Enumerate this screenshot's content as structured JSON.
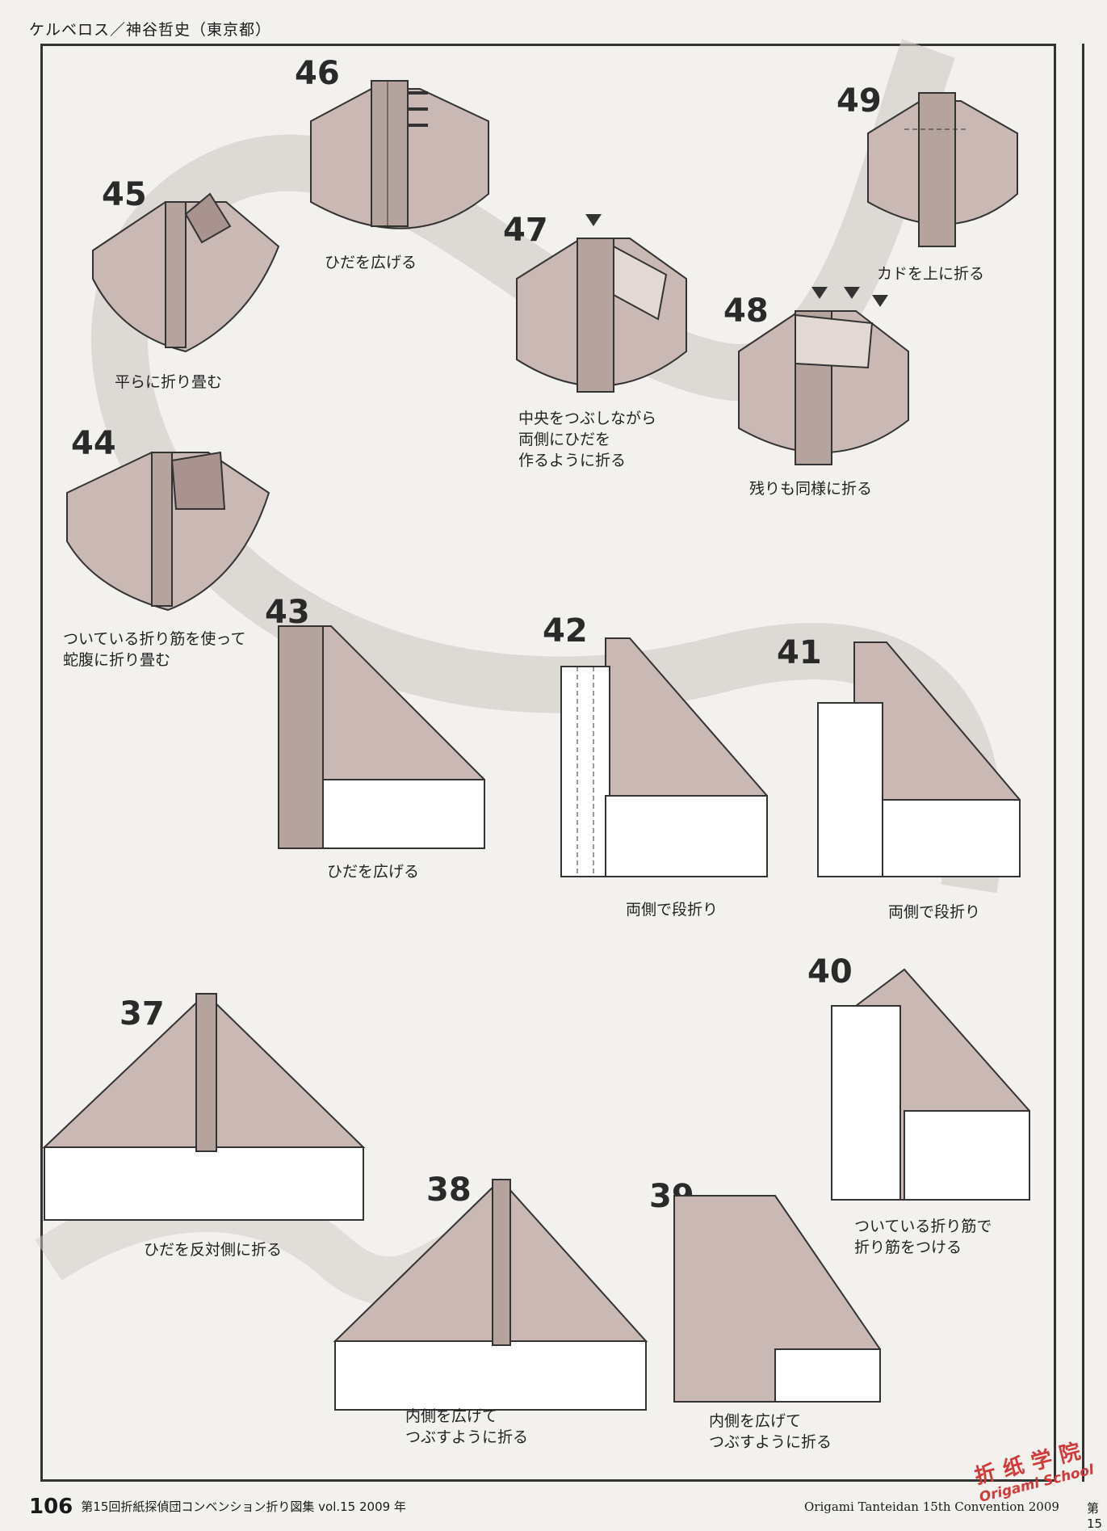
{
  "header": "ケルベロス／神谷哲史（東京都）",
  "steps": [
    {
      "num": "46",
      "caption": "ひだを広げる"
    },
    {
      "num": "45",
      "caption": "平らに折り畳む"
    },
    {
      "num": "47",
      "caption": "中央をつぶしながら\n両側にひだを\n作るように折る"
    },
    {
      "num": "48",
      "caption": "残りも同様に折る"
    },
    {
      "num": "49",
      "caption": "カドを上に折る"
    },
    {
      "num": "44",
      "caption": "ついている折り筋を使って\n蛇腹に折り畳む"
    },
    {
      "num": "43",
      "caption": "ひだを広げる"
    },
    {
      "num": "42",
      "caption": "両側で段折り"
    },
    {
      "num": "41",
      "caption": "両側で段折り"
    },
    {
      "num": "37",
      "caption": "ひだを反対側に折る"
    },
    {
      "num": "40",
      "caption": "ついている折り筋で\n折り筋をつける"
    },
    {
      "num": "38",
      "caption": "内側を広げて\nつぶすように折る"
    },
    {
      "num": "39",
      "caption": "内側を広げて\nつぶすように折る"
    }
  ],
  "footer": {
    "page_number": "106",
    "left_text": "第15回折紙探偵団コンベンション折り図集 vol.15 2009 年",
    "right_text": "Origami Tanteidan 15th Convention 2009",
    "edge_text": "第 15"
  },
  "watermark": {
    "chinese": "折纸学院",
    "english": "Origami School"
  }
}
